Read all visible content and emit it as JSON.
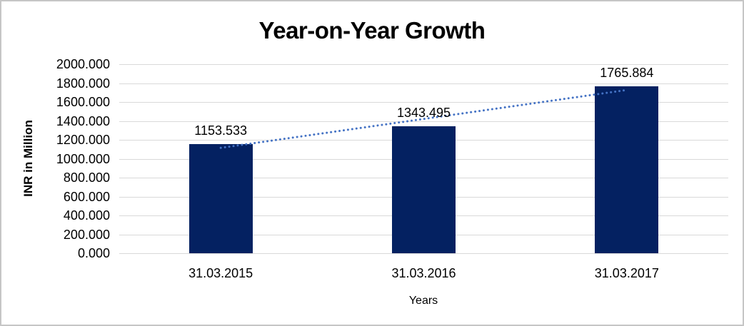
{
  "chart_data": {
    "type": "bar",
    "title": "Year-on-Year Growth",
    "xlabel": "Years",
    "ylabel": "INR in Million",
    "categories": [
      "31.03.2015",
      "31.03.2016",
      "31.03.2017"
    ],
    "values": [
      1153.533,
      1343.495,
      1765.884
    ],
    "data_labels": [
      "1153.533",
      "1343.495",
      "1765.884"
    ],
    "y_ticks": [
      "2000.000",
      "1800.000",
      "1600.000",
      "1400.000",
      "1200.000",
      "1000.000",
      "800.000",
      "600.000",
      "400.000",
      "200.000",
      "0.000"
    ],
    "ylim": [
      0,
      2000
    ],
    "grid": true,
    "legend": "none",
    "trendline": {
      "type": "linear",
      "style": "dotted"
    },
    "colors": {
      "bar": "#042161",
      "trendline": "#4472c4",
      "gridline": "#d9d9d9",
      "text": "#000000",
      "background": "#ffffff",
      "frame_border": "#c6c6c6"
    }
  }
}
